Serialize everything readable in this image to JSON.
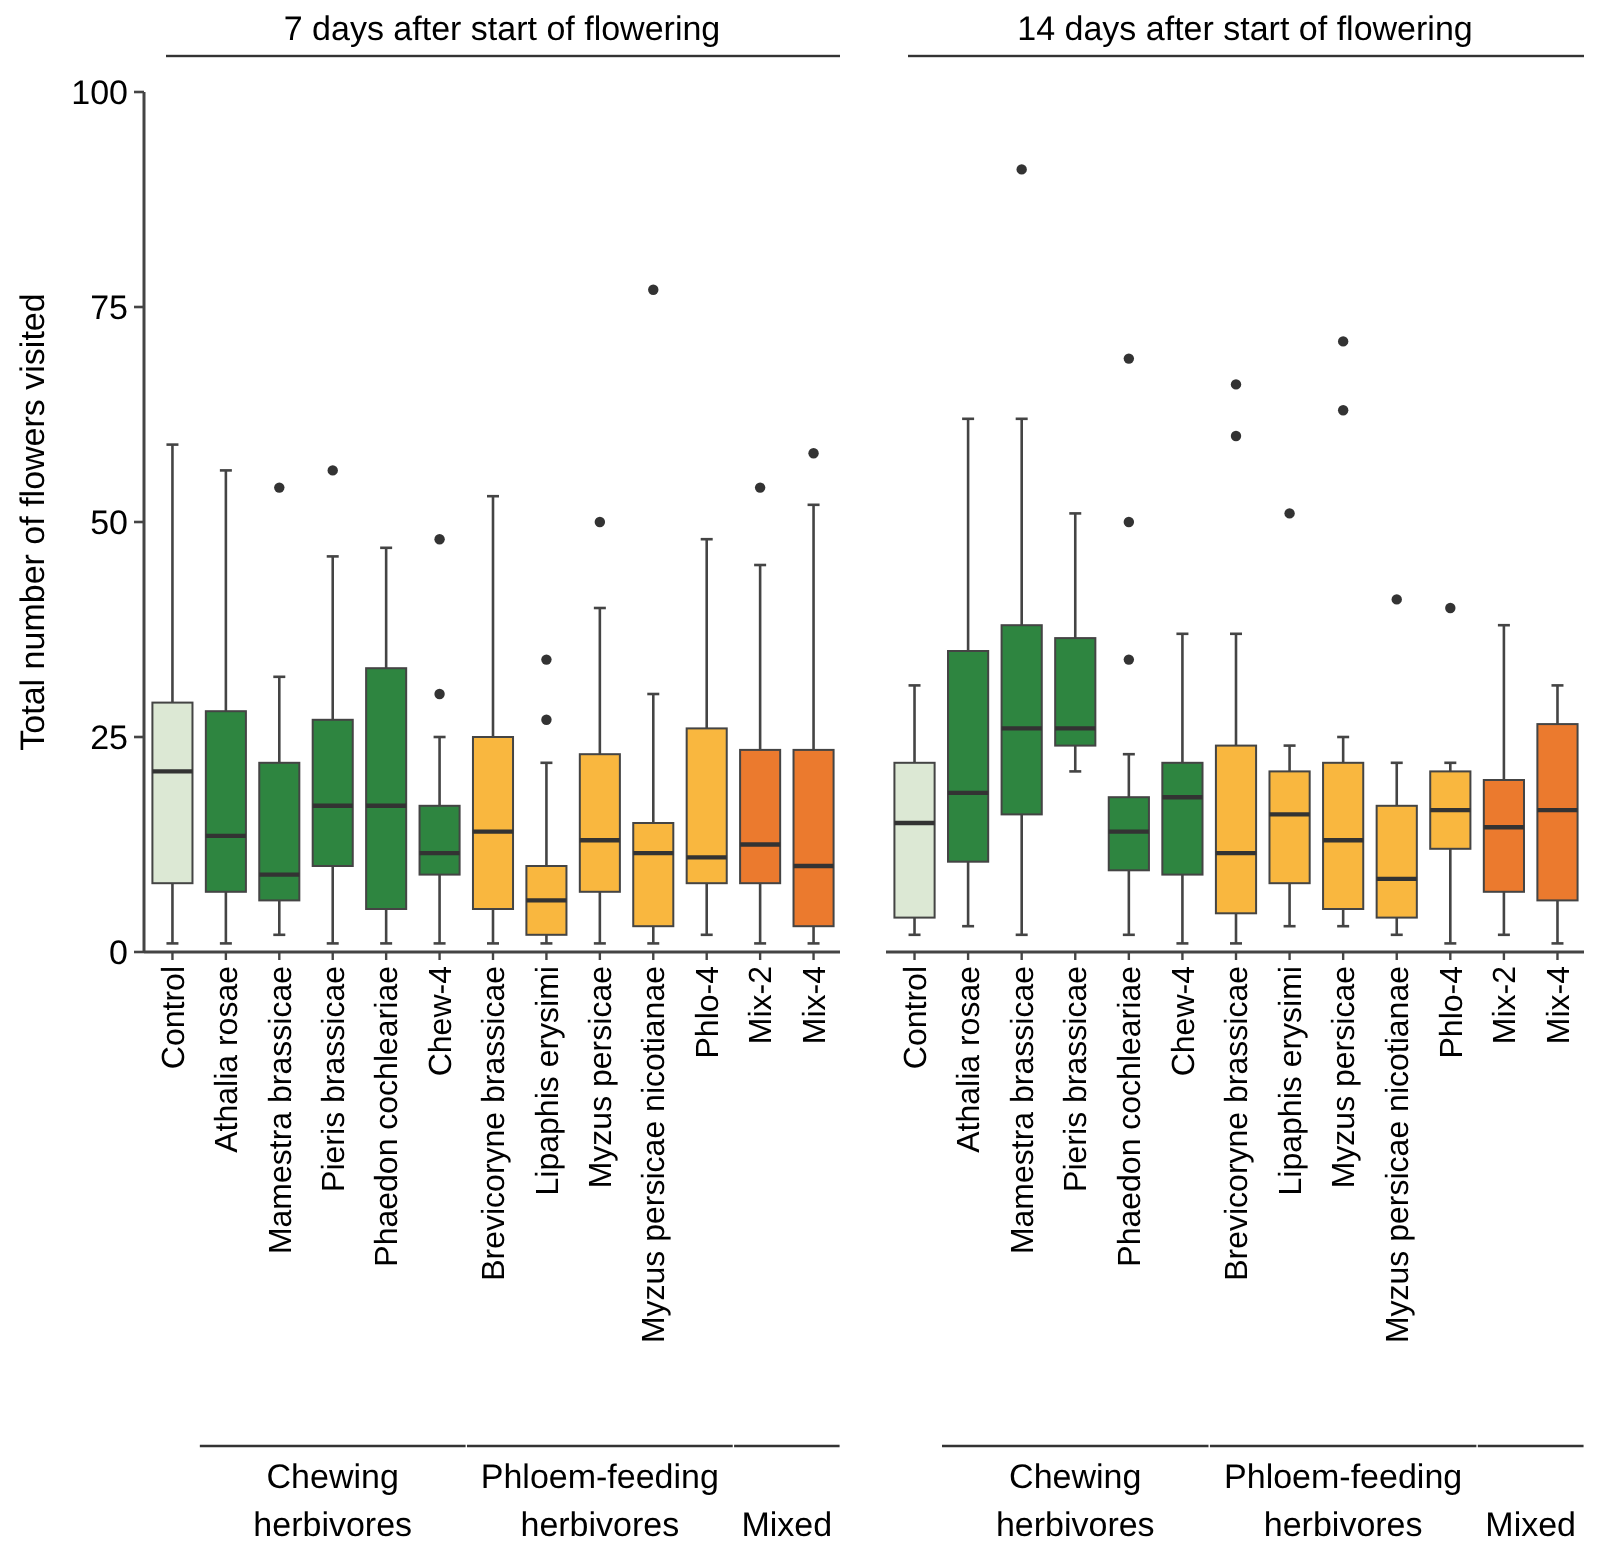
{
  "chart_data": [
    {
      "type": "box",
      "title": "7 days after start of flowering",
      "ylabel": "Total number of flowers visited",
      "ylim": [
        0,
        100
      ],
      "yticks": [
        0,
        25,
        50,
        75,
        100
      ],
      "grid": false,
      "categories": [
        "Control",
        "Athalia rosae",
        "Mamestra brassicae",
        "Pieris brassicae",
        "Phaedon cochleariae",
        "Chew-4",
        "Brevicoryne brassicae",
        "Lipaphis erysimi",
        "Myzus persicae",
        "Myzus persicae nicotianae",
        "Phlo-4",
        "Mix-2",
        "Mix-4"
      ],
      "colors": [
        "#dce8d4",
        "#2e8540",
        "#2e8540",
        "#2e8540",
        "#2e8540",
        "#2e8540",
        "#f9b73f",
        "#f9b73f",
        "#f9b73f",
        "#f9b73f",
        "#f9b73f",
        "#eb7a2e",
        "#eb7a2e"
      ],
      "boxes": [
        {
          "low": 1,
          "q1": 8,
          "median": 21,
          "q3": 29,
          "high": 59
        },
        {
          "low": 1,
          "q1": 7,
          "median": 13.5,
          "q3": 28,
          "high": 56
        },
        {
          "low": 2,
          "q1": 6,
          "median": 9,
          "q3": 22,
          "high": 32,
          "outliers": [
            54
          ]
        },
        {
          "low": 1,
          "q1": 10,
          "median": 17,
          "q3": 27,
          "high": 46,
          "outliers": [
            56
          ]
        },
        {
          "low": 1,
          "q1": 5,
          "median": 17,
          "q3": 33,
          "high": 47
        },
        {
          "low": 1,
          "q1": 9,
          "median": 11.5,
          "q3": 17,
          "high": 25,
          "outliers": [
            30,
            48
          ]
        },
        {
          "low": 1,
          "q1": 5,
          "median": 14,
          "q3": 25,
          "high": 53
        },
        {
          "low": 1,
          "q1": 2,
          "median": 6,
          "q3": 10,
          "high": 22,
          "outliers": [
            27,
            34
          ]
        },
        {
          "low": 1,
          "q1": 7,
          "median": 13,
          "q3": 23,
          "high": 40,
          "outliers": [
            50
          ]
        },
        {
          "low": 1,
          "q1": 3,
          "median": 11.5,
          "q3": 15,
          "high": 30,
          "outliers": [
            77
          ]
        },
        {
          "low": 2,
          "q1": 8,
          "median": 11,
          "q3": 26,
          "high": 48
        },
        {
          "low": 1,
          "q1": 8,
          "median": 12.5,
          "q3": 23.5,
          "high": 45,
          "outliers": [
            54
          ]
        },
        {
          "low": 1,
          "q1": 3,
          "median": 10,
          "q3": 23.5,
          "high": 52,
          "outliers": [
            58
          ]
        }
      ],
      "annotations": [
        "Chewing herbivores",
        "Phloem-feeding herbivores",
        "Mixed"
      ]
    },
    {
      "type": "box",
      "title": "14 days after start of flowering",
      "ylim": [
        0,
        100
      ],
      "yticks": [
        0,
        25,
        50,
        75,
        100
      ],
      "tick_labels": "x",
      "grid": false,
      "categories": [
        "Control",
        "Athalia rosae",
        "Mamestra brassicae",
        "Pieris brassicae",
        "Phaedon cochleariae",
        "Chew-4",
        "Brevicoryne brassicae",
        "Lipaphis erysimi",
        "Myzus persicae",
        "Myzus persicae nicotianae",
        "Phlo-4",
        "Mix-2",
        "Mix-4"
      ],
      "colors": [
        "#dce8d4",
        "#2e8540",
        "#2e8540",
        "#2e8540",
        "#2e8540",
        "#2e8540",
        "#f9b73f",
        "#f9b73f",
        "#f9b73f",
        "#f9b73f",
        "#f9b73f",
        "#eb7a2e",
        "#eb7a2e"
      ],
      "boxes": [
        {
          "low": 2,
          "q1": 4,
          "median": 15,
          "q3": 22,
          "high": 31
        },
        {
          "low": 3,
          "q1": 10.5,
          "median": 18.5,
          "q3": 35,
          "high": 62
        },
        {
          "low": 2,
          "q1": 16,
          "median": 26,
          "q3": 38,
          "high": 62,
          "outliers": [
            91
          ]
        },
        {
          "low": 21,
          "q1": 24,
          "median": 26,
          "q3": 36.5,
          "high": 51
        },
        {
          "low": 2,
          "q1": 9.5,
          "median": 14,
          "q3": 18,
          "high": 23,
          "outliers": [
            34,
            50,
            69
          ]
        },
        {
          "low": 1,
          "q1": 9,
          "median": 18,
          "q3": 22,
          "high": 37
        },
        {
          "low": 1,
          "q1": 4.5,
          "median": 11.5,
          "q3": 24,
          "high": 37,
          "outliers": [
            60,
            66
          ]
        },
        {
          "low": 3,
          "q1": 8,
          "median": 16,
          "q3": 21,
          "high": 24,
          "outliers": [
            51
          ]
        },
        {
          "low": 3,
          "q1": 5,
          "median": 13,
          "q3": 22,
          "high": 25,
          "outliers": [
            63,
            71
          ]
        },
        {
          "low": 2,
          "q1": 4,
          "median": 8.5,
          "q3": 17,
          "high": 22,
          "outliers": [
            41
          ]
        },
        {
          "low": 1,
          "q1": 12,
          "median": 16.5,
          "q3": 21,
          "high": 22,
          "outliers": [
            40
          ]
        },
        {
          "low": 2,
          "q1": 7,
          "median": 14.5,
          "q3": 20,
          "high": 38
        },
        {
          "low": 1,
          "q1": 6,
          "median": 16.5,
          "q3": 26.5,
          "high": 31
        }
      ],
      "annotations": [
        "Chewing herbivores",
        "Phloem-feeding herbivores",
        "Mixed"
      ]
    }
  ]
}
